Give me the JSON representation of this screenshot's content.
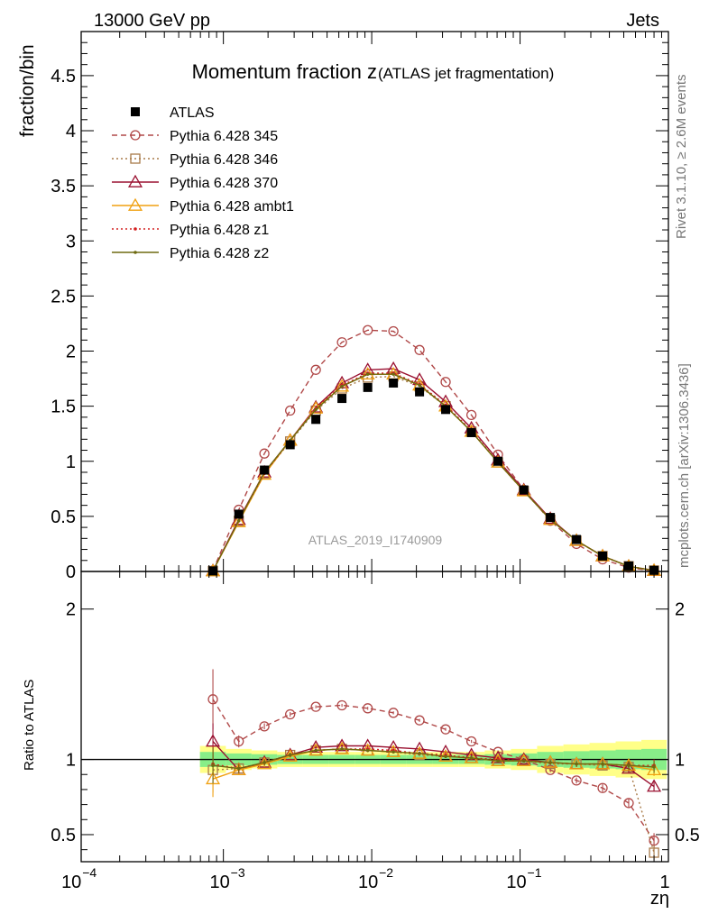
{
  "chart_data": {
    "type": "line",
    "energy_label": "13000 GeV pp",
    "process_label": "Jets",
    "title_main": "Momentum fraction z",
    "title_sub": "(ATLAS jet fragmentation)",
    "ylabel": "fraction/bin",
    "ratio_ylabel": "Ratio to ATLAS",
    "xlabel": "zη",
    "analysis_label": "ATLAS_2019_I1740909",
    "side_label_1": "Rivet 3.1.10, ≥ 2.6M events",
    "side_label_2": "mcplots.cern.ch [arXiv:1306.3436]",
    "xscale": "log",
    "xlim": [
      0.00011,
      1.0
    ],
    "ylim": [
      0,
      4.9
    ],
    "ratio_ylim": [
      0.32,
      2.25
    ],
    "ratio_reference": 1.0,
    "legend_position": "top-left",
    "x_tick_labels": [
      {
        "value": 0.0001,
        "label": "10",
        "exp": "−4"
      },
      {
        "value": 0.001,
        "label": "10",
        "exp": "−3"
      },
      {
        "value": 0.01,
        "label": "10",
        "exp": "−2"
      },
      {
        "value": 0.1,
        "label": "10",
        "exp": "−1"
      },
      {
        "value": 1,
        "label": "1",
        "exp": ""
      }
    ],
    "y_tick_labels": [
      {
        "value": 0,
        "label": "0"
      },
      {
        "value": 0.5,
        "label": "0.5"
      },
      {
        "value": 1,
        "label": "1"
      },
      {
        "value": 1.5,
        "label": "1.5"
      },
      {
        "value": 2,
        "label": "2"
      },
      {
        "value": 2.5,
        "label": "2.5"
      },
      {
        "value": 3,
        "label": "3"
      },
      {
        "value": 3.5,
        "label": "3.5"
      },
      {
        "value": 4,
        "label": "4"
      },
      {
        "value": 4.5,
        "label": "4.5"
      }
    ],
    "ratio_tick_labels": [
      {
        "value": 0.5,
        "label": "0.5"
      },
      {
        "value": 1,
        "label": "1"
      },
      {
        "value": 2,
        "label": "2"
      }
    ],
    "x": [
      0.00085,
      0.00127,
      0.00189,
      0.00282,
      0.0042,
      0.0063,
      0.0094,
      0.014,
      0.021,
      0.0315,
      0.047,
      0.071,
      0.106,
      0.16,
      0.24,
      0.36,
      0.54,
      0.8
    ],
    "data": {
      "name": "ATLAS",
      "values": [
        0.005,
        0.52,
        0.92,
        1.15,
        1.38,
        1.57,
        1.67,
        1.71,
        1.63,
        1.47,
        1.26,
        1.0,
        0.74,
        0.49,
        0.29,
        0.14,
        0.05,
        0.01
      ],
      "band_inner": [
        0.05,
        0.04,
        0.035,
        0.03,
        0.03,
        0.03,
        0.03,
        0.03,
        0.03,
        0.03,
        0.03,
        0.035,
        0.04,
        0.05,
        0.055,
        0.06,
        0.065,
        0.07
      ],
      "band_outer": [
        0.09,
        0.07,
        0.06,
        0.05,
        0.05,
        0.05,
        0.05,
        0.05,
        0.05,
        0.05,
        0.05,
        0.06,
        0.07,
        0.09,
        0.1,
        0.11,
        0.12,
        0.13
      ]
    },
    "series": [
      {
        "name": "Pythia 6.428 345",
        "color": "#b04848",
        "dash": "6,4",
        "marker": "circle",
        "values": [
          0.007,
          0.56,
          1.07,
          1.46,
          1.83,
          2.08,
          2.19,
          2.18,
          2.01,
          1.72,
          1.42,
          1.06,
          0.74,
          0.46,
          0.25,
          0.11,
          0.035,
          0.004
        ],
        "ratio": [
          1.4,
          1.12,
          1.22,
          1.3,
          1.35,
          1.36,
          1.34,
          1.31,
          1.26,
          1.2,
          1.12,
          1.05,
          1.0,
          0.93,
          0.86,
          0.81,
          0.71,
          0.46
        ],
        "ratio_err": [
          0.2,
          0.04,
          0.02,
          0.015,
          0.01,
          0.01,
          0.01,
          0.01,
          0.01,
          0.01,
          0.01,
          0.01,
          0.01,
          0.015,
          0.02,
          0.025,
          0.03,
          0.05
        ]
      },
      {
        "name": "Pythia 6.428 346",
        "color": "#a87a48",
        "dash": "2,3",
        "marker": "square",
        "values": [
          0.004,
          0.46,
          0.89,
          1.18,
          1.46,
          1.66,
          1.76,
          1.77,
          1.68,
          1.5,
          1.27,
          0.99,
          0.73,
          0.47,
          0.28,
          0.14,
          0.048,
          0.009
        ],
        "ratio": [
          0.93,
          0.94,
          0.98,
          1.03,
          1.06,
          1.07,
          1.06,
          1.05,
          1.03,
          1.02,
          1.01,
          0.99,
          0.99,
          0.97,
          0.97,
          0.96,
          0.95,
          0.38
        ],
        "ratio_err": [
          0.15,
          0.04,
          0.02,
          0.015,
          0.01,
          0.01,
          0.01,
          0.01,
          0.01,
          0.01,
          0.01,
          0.01,
          0.01,
          0.015,
          0.02,
          0.025,
          0.03,
          0.05
        ]
      },
      {
        "name": "Pythia 6.428 370",
        "color": "#9a1030",
        "dash": "",
        "marker": "triangle",
        "values": [
          0.006,
          0.47,
          0.9,
          1.19,
          1.49,
          1.71,
          1.83,
          1.84,
          1.74,
          1.54,
          1.3,
          1.01,
          0.74,
          0.48,
          0.28,
          0.14,
          0.047,
          0.008
        ],
        "ratio": [
          1.12,
          0.93,
          0.98,
          1.03,
          1.08,
          1.09,
          1.09,
          1.08,
          1.07,
          1.05,
          1.03,
          1.01,
          1.0,
          0.98,
          0.97,
          0.97,
          0.94,
          0.82
        ],
        "ratio_err": [
          0.12,
          0.03,
          0.02,
          0.015,
          0.01,
          0.01,
          0.01,
          0.01,
          0.01,
          0.01,
          0.01,
          0.01,
          0.01,
          0.015,
          0.02,
          0.025,
          0.03,
          0.03
        ]
      },
      {
        "name": "Pythia 6.428 ambt1",
        "color": "#f0a010",
        "dash": "",
        "marker": "triangle",
        "values": [
          0.004,
          0.45,
          0.88,
          1.19,
          1.48,
          1.68,
          1.79,
          1.79,
          1.69,
          1.5,
          1.27,
          0.99,
          0.73,
          0.47,
          0.28,
          0.14,
          0.047,
          0.009
        ],
        "ratio": [
          0.87,
          0.93,
          0.97,
          1.02,
          1.06,
          1.07,
          1.06,
          1.05,
          1.04,
          1.02,
          1.01,
          0.99,
          0.99,
          0.98,
          0.97,
          0.97,
          0.96,
          0.93
        ],
        "ratio_err": [
          0.12,
          0.03,
          0.02,
          0.015,
          0.01,
          0.01,
          0.01,
          0.01,
          0.01,
          0.01,
          0.01,
          0.01,
          0.01,
          0.015,
          0.02,
          0.025,
          0.03,
          0.04
        ]
      },
      {
        "name": "Pythia 6.428 z1",
        "color": "#d42020",
        "dash": "2,3",
        "marker": "dot",
        "values": [
          0.005,
          0.46,
          0.89,
          1.19,
          1.48,
          1.69,
          1.8,
          1.8,
          1.7,
          1.51,
          1.28,
          0.99,
          0.73,
          0.47,
          0.28,
          0.14,
          0.047,
          0.009
        ],
        "ratio": [
          0.97,
          0.94,
          0.98,
          1.03,
          1.06,
          1.07,
          1.07,
          1.06,
          1.04,
          1.03,
          1.01,
          1.0,
          0.99,
          0.98,
          0.97,
          0.97,
          0.96,
          0.96
        ],
        "ratio_err": [
          0.12,
          0.03,
          0.02,
          0.015,
          0.01,
          0.01,
          0.01,
          0.01,
          0.01,
          0.01,
          0.01,
          0.01,
          0.01,
          0.015,
          0.02,
          0.025,
          0.03,
          0.04
        ]
      },
      {
        "name": "Pythia 6.428 z2",
        "color": "#6e6a10",
        "dash": "",
        "marker": "dot",
        "values": [
          0.005,
          0.46,
          0.9,
          1.19,
          1.47,
          1.68,
          1.79,
          1.79,
          1.69,
          1.5,
          1.27,
          0.99,
          0.73,
          0.47,
          0.28,
          0.14,
          0.047,
          0.009
        ],
        "ratio": [
          0.96,
          0.94,
          0.98,
          1.03,
          1.06,
          1.07,
          1.06,
          1.05,
          1.04,
          1.02,
          1.01,
          0.99,
          0.99,
          0.98,
          0.97,
          0.97,
          0.96,
          0.95
        ],
        "ratio_err": [
          0.12,
          0.03,
          0.02,
          0.015,
          0.01,
          0.01,
          0.01,
          0.01,
          0.01,
          0.01,
          0.01,
          0.01,
          0.01,
          0.015,
          0.02,
          0.025,
          0.03,
          0.04
        ]
      }
    ]
  }
}
